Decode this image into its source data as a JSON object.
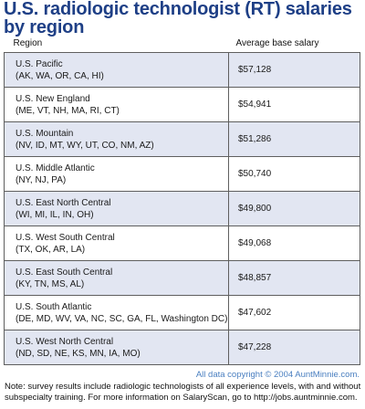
{
  "title": "U.S. radiologic technologist (RT) salaries by region",
  "colors": {
    "title": "#1e3f86",
    "row_shade": "#e2e6f2",
    "copyright": "#4a7fc0"
  },
  "chart_data": {
    "type": "table",
    "title": "U.S. radiologic technologist (RT) salaries by region",
    "columns": [
      "Region",
      "Average base salary"
    ],
    "rows": [
      {
        "region": "U.S. Pacific",
        "states": "(AK, WA, OR, CA, HI)",
        "salary": "$57,128",
        "value": 57128
      },
      {
        "region": "U.S. New England",
        "states": "(ME, VT, NH, MA, RI, CT)",
        "salary": "$54,941",
        "value": 54941
      },
      {
        "region": "U.S. Mountain",
        "states": "(NV, ID, MT, WY, UT, CO, NM, AZ)",
        "salary": "$51,286",
        "value": 51286
      },
      {
        "region": "U.S. Middle Atlantic",
        "states": "(NY, NJ, PA)",
        "salary": "$50,740",
        "value": 50740
      },
      {
        "region": "U.S. East North Central",
        "states": "(WI, MI, IL, IN, OH)",
        "salary": "$49,800",
        "value": 49800
      },
      {
        "region": "U.S. West South Central",
        "states": "(TX, OK, AR, LA)",
        "salary": "$49,068",
        "value": 49068
      },
      {
        "region": "U.S. East South Central",
        "states": "(KY, TN, MS, AL)",
        "salary": "$48,857",
        "value": 48857
      },
      {
        "region": "U.S. South Atlantic",
        "states": "(DE, MD, WV, VA, NC, SC, GA, FL, Washington DC)",
        "salary": "$47,602",
        "value": 47602
      },
      {
        "region": "U.S. West North Central",
        "states": "(ND, SD, NE, KS, MN, IA, MO)",
        "salary": "$47,228",
        "value": 47228
      }
    ]
  },
  "footer": {
    "copyright": "All data copyright © 2004 AuntMinnie.com.",
    "note": "Note: survey results include radiologic technologists of all experience levels, with and without subspecialty training. For more information on SalaryScan, go to http://jobs.auntminnie.com."
  }
}
